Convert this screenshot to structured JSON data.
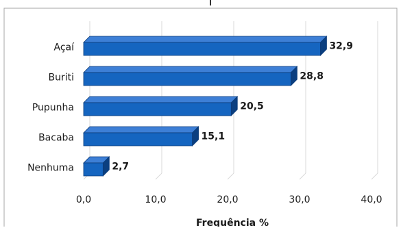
{
  "chart_data": {
    "type": "bar",
    "orientation": "horizontal",
    "categories": [
      "Açaí",
      "Buriti",
      "Pupunha",
      "Bacaba",
      "Nenhuma"
    ],
    "values": [
      32.9,
      28.8,
      20.5,
      15.1,
      2.7
    ],
    "value_labels": [
      "32,9",
      "28,8",
      "20,5",
      "15,1",
      "2,7"
    ],
    "x_ticks": [
      0,
      10,
      20,
      30,
      40
    ],
    "x_tick_labels": [
      "0,0",
      "10,0",
      "20,0",
      "30,0",
      "40,0"
    ],
    "xlim": [
      0,
      40
    ],
    "xlabel": "Frequência %",
    "ylabel": "",
    "title": "",
    "grid": "vertical",
    "legend": "none",
    "bar_style": "3d",
    "colors": {
      "bar_front": "#1565C0",
      "bar_top": "#3D7FD6",
      "bar_side": "#0B3F80",
      "bar_outline": "#0A3A78",
      "grid": "#D9D9D9",
      "frame": "#A6A6A6"
    }
  }
}
